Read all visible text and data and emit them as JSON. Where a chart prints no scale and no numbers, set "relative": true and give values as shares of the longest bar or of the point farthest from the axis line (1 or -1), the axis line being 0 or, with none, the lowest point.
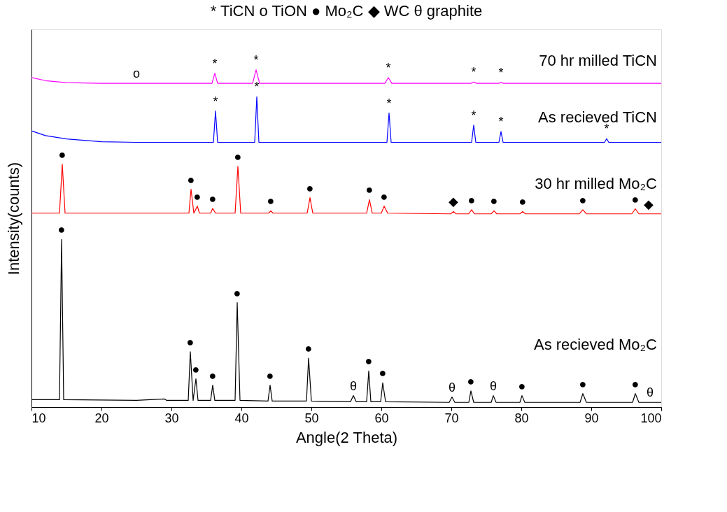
{
  "chart_data": {
    "type": "line",
    "relative": true,
    "xlabel": "Angle(2 Theta)",
    "ylabel": "Intensity(counts)",
    "xlim": [
      10,
      100
    ],
    "xticks": [
      10,
      20,
      30,
      40,
      50,
      60,
      70,
      80,
      90,
      100
    ],
    "grid": false,
    "tick_labels": "x",
    "line_style": "solid",
    "series": [
      {
        "name": "70 hr milled TiCN",
        "color": "#ff00ff",
        "x": [
          10,
          12,
          15,
          20,
          35.8,
          36.2,
          36.6,
          41.6,
          42.1,
          42.6,
          60.5,
          61.0,
          61.5,
          72.8,
          73.2,
          73.6,
          76.8,
          77.1,
          77.4,
          100
        ],
        "values": [
          0.977,
          0.968,
          0.962,
          0.96,
          0.96,
          0.99,
          0.96,
          0.96,
          1.0,
          0.96,
          0.96,
          0.977,
          0.96,
          0.96,
          0.964,
          0.96,
          0.96,
          0.963,
          0.96,
          0.96
        ]
      },
      {
        "name": "As recieved TiCN",
        "color": "#0000ff",
        "x": [
          10,
          12,
          15,
          20,
          25,
          36.0,
          36.3,
          36.6,
          41.9,
          42.2,
          42.5,
          60.8,
          61.1,
          61.4,
          72.9,
          73.2,
          73.5,
          76.8,
          77.1,
          77.4,
          91.9,
          92.2,
          92.5,
          100
        ],
        "values": [
          0.819,
          0.805,
          0.795,
          0.787,
          0.785,
          0.785,
          0.878,
          0.785,
          0.785,
          0.92,
          0.785,
          0.785,
          0.872,
          0.785,
          0.785,
          0.836,
          0.785,
          0.785,
          0.817,
          0.785,
          0.785,
          0.796,
          0.785,
          0.785
        ]
      },
      {
        "name": "30 hr milled Mo₂C",
        "color": "#ff0000",
        "x": [
          10,
          14.0,
          14.4,
          14.8,
          32.5,
          32.8,
          33.2,
          33.7,
          34.0,
          35.6,
          35.9,
          36.3,
          39.1,
          39.5,
          39.9,
          43.9,
          44.2,
          44.5,
          49.4,
          49.8,
          50.2,
          57.9,
          58.3,
          58.7,
          60.0,
          60.4,
          60.9,
          69.9,
          70.3,
          70.7,
          72.5,
          72.9,
          73.3,
          75.7,
          76.1,
          76.5,
          79.8,
          80.2,
          80.6,
          88.3,
          88.8,
          89.3,
          95.8,
          96.3,
          96.8,
          100
        ],
        "values": [
          0.575,
          0.575,
          0.72,
          0.575,
          0.575,
          0.646,
          0.575,
          0.596,
          0.575,
          0.575,
          0.589,
          0.575,
          0.575,
          0.714,
          0.575,
          0.575,
          0.582,
          0.575,
          0.575,
          0.621,
          0.575,
          0.575,
          0.615,
          0.575,
          0.575,
          0.596,
          0.575,
          0.573,
          0.58,
          0.573,
          0.573,
          0.585,
          0.573,
          0.573,
          0.582,
          0.573,
          0.573,
          0.58,
          0.573,
          0.573,
          0.585,
          0.573,
          0.573,
          0.588,
          0.573,
          0.573
        ]
      },
      {
        "name": "As recieved Mo₂C",
        "color": "#000000",
        "x": [
          10,
          14.0,
          14.3,
          14.6,
          25,
          29,
          29.3,
          32.4,
          32.7,
          33.1,
          33.5,
          33.8,
          35.6,
          35.9,
          36.2,
          39.1,
          39.4,
          39.8,
          43.8,
          44.1,
          44.4,
          49.3,
          49.6,
          50.0,
          55.6,
          56.0,
          56.4,
          57.9,
          58.2,
          58.5,
          59.9,
          60.2,
          60.6,
          69.7,
          70.1,
          70.5,
          72.5,
          72.8,
          73.2,
          75.7,
          76.0,
          76.4,
          79.8,
          80.1,
          80.5,
          88.4,
          88.8,
          89.3,
          95.9,
          96.3,
          96.8,
          100
        ],
        "values": [
          0.022,
          0.022,
          0.497,
          0.022,
          0.02,
          0.024,
          0.02,
          0.02,
          0.164,
          0.02,
          0.084,
          0.02,
          0.02,
          0.065,
          0.02,
          0.02,
          0.31,
          0.02,
          0.018,
          0.065,
          0.018,
          0.018,
          0.145,
          0.018,
          0.016,
          0.034,
          0.016,
          0.016,
          0.107,
          0.016,
          0.016,
          0.072,
          0.016,
          0.014,
          0.03,
          0.014,
          0.014,
          0.048,
          0.014,
          0.014,
          0.034,
          0.014,
          0.014,
          0.034,
          0.014,
          0.014,
          0.04,
          0.014,
          0.014,
          0.04,
          0.014,
          0.014
        ]
      }
    ],
    "annotations": [
      "* TiCN     o TiON     ● Mo₂C     ◆ WC     θ graphite",
      {
        "text": "o",
        "x": 25,
        "y": 0.96
      },
      {
        "text": "*",
        "x": 36.2,
        "y": 0.99
      },
      {
        "text": "*",
        "x": 42.1,
        "y": 1.0
      },
      {
        "text": "*",
        "x": 61.0,
        "y": 0.977
      },
      {
        "text": "*",
        "x": 73.2,
        "y": 0.964
      },
      {
        "text": "*",
        "x": 77.1,
        "y": 0.963
      },
      {
        "text": "*",
        "x": 36.3,
        "y": 0.878
      },
      {
        "text": "*",
        "x": 42.2,
        "y": 0.92
      },
      {
        "text": "*",
        "x": 61.1,
        "y": 0.872
      },
      {
        "text": "*",
        "x": 73.2,
        "y": 0.836
      },
      {
        "text": "*",
        "x": 77.1,
        "y": 0.817
      },
      {
        "text": "*",
        "x": 92.2,
        "y": 0.796
      },
      {
        "text": "●",
        "x": 14.4,
        "y": 0.72
      },
      {
        "text": "●",
        "x": 32.8,
        "y": 0.646
      },
      {
        "text": "●",
        "x": 33.7,
        "y": 0.596
      },
      {
        "text": "●",
        "x": 35.9,
        "y": 0.589
      },
      {
        "text": "●",
        "x": 39.5,
        "y": 0.714
      },
      {
        "text": "●",
        "x": 44.2,
        "y": 0.582
      },
      {
        "text": "●",
        "x": 49.8,
        "y": 0.621
      },
      {
        "text": "●",
        "x": 58.3,
        "y": 0.615
      },
      {
        "text": "●",
        "x": 60.4,
        "y": 0.596
      },
      {
        "text": "◆",
        "x": 70.3,
        "y": 0.58
      },
      {
        "text": "●",
        "x": 72.9,
        "y": 0.585
      },
      {
        "text": "●",
        "x": 76.1,
        "y": 0.582
      },
      {
        "text": "●",
        "x": 80.2,
        "y": 0.58
      },
      {
        "text": "●",
        "x": 88.8,
        "y": 0.585
      },
      {
        "text": "●",
        "x": 96.3,
        "y": 0.588
      },
      {
        "text": "◆",
        "x": 98.2,
        "y": 0.573
      },
      {
        "text": "●",
        "x": 14.3,
        "y": 0.497
      },
      {
        "text": "●",
        "x": 32.7,
        "y": 0.164
      },
      {
        "text": "●",
        "x": 33.5,
        "y": 0.084
      },
      {
        "text": "●",
        "x": 35.9,
        "y": 0.065
      },
      {
        "text": "●",
        "x": 39.4,
        "y": 0.31
      },
      {
        "text": "●",
        "x": 44.1,
        "y": 0.065
      },
      {
        "text": "●",
        "x": 49.6,
        "y": 0.145
      },
      {
        "text": "●",
        "x": 58.2,
        "y": 0.107
      },
      {
        "text": "●",
        "x": 60.2,
        "y": 0.072
      },
      {
        "text": "θ",
        "x": 56.0,
        "y": 0.034
      },
      {
        "text": "θ",
        "x": 70.1,
        "y": 0.03
      },
      {
        "text": "●",
        "x": 72.8,
        "y": 0.048
      },
      {
        "text": "θ",
        "x": 76.0,
        "y": 0.034
      },
      {
        "text": "●",
        "x": 80.1,
        "y": 0.034
      },
      {
        "text": "●",
        "x": 88.8,
        "y": 0.04
      },
      {
        "text": "●",
        "x": 96.3,
        "y": 0.04
      },
      {
        "text": "θ",
        "x": 98.4,
        "y": 0.014
      }
    ]
  }
}
